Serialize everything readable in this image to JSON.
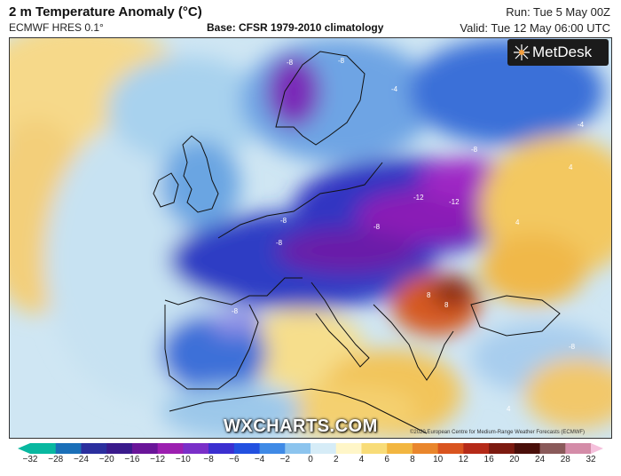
{
  "header": {
    "title": "2 m Temperature Anomaly (°C)",
    "model": "ECMWF HRES 0.1°",
    "base": "Base: CFSR 1979-2010 climatology",
    "run": "Run: Tue 5 May 00Z",
    "valid": "Valid: Tue 12 May 06:00 UTC"
  },
  "branding": {
    "logo_text": "MetDesk",
    "watermark": "WXCHARTS.COM",
    "copyright": "©2020 European Centre for Medium-Range Weather Forecasts (ECMWF)"
  },
  "colorbar": {
    "ticks": [
      "−32",
      "−28",
      "−24",
      "−20",
      "−16",
      "−12",
      "−10",
      "−8",
      "−6",
      "−4",
      "−2",
      "0",
      "2",
      "4",
      "6",
      "8",
      "10",
      "12",
      "16",
      "20",
      "24",
      "28",
      "32"
    ],
    "colors": [
      "#08b8a0",
      "#1a6fb8",
      "#2b2f9e",
      "#3a1a8c",
      "#6a1599",
      "#9c1fb0",
      "#7a2fc8",
      "#3b2fd0",
      "#2250e0",
      "#3f8ae6",
      "#8cc4ee",
      "#d6ecf7",
      "#fff6c8",
      "#f8dc78",
      "#f2b640",
      "#e9862c",
      "#d9541f",
      "#b52a18",
      "#7c1a10",
      "#4a0f0a",
      "#8a5a5a",
      "#d48ca8",
      "#f5c0dc"
    ]
  },
  "map": {
    "contour_labels": [
      "-8",
      "-8",
      "-4",
      "-4",
      "-8",
      "-12",
      "-12",
      "-8",
      "-8",
      "-8",
      "4",
      "4",
      "8",
      "8",
      "-8",
      "-8",
      "4"
    ],
    "legend": "temperature anomaly shading"
  }
}
